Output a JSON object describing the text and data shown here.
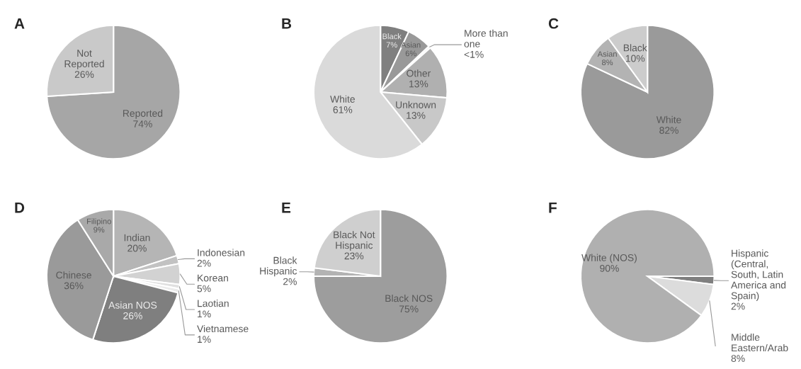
{
  "chart_data": [
    {
      "type": "pie",
      "title": "A",
      "categories": [
        "Reported",
        "Not\nReported"
      ],
      "values": [
        74,
        26
      ],
      "value_labels": [
        "74%",
        "26%"
      ],
      "colors": [
        "#a6a6a6",
        "#c9c9c9"
      ]
    },
    {
      "type": "pie",
      "title": "B",
      "categories": [
        "Black",
        "Asian",
        "More than\none",
        "Other",
        "Unknown",
        "White"
      ],
      "values": [
        7,
        6,
        0.5,
        13,
        13,
        61
      ],
      "value_labels": [
        "7%",
        "6%",
        "<1%",
        "13%",
        "13%",
        "61%"
      ],
      "colors": [
        "#7f7f7f",
        "#999999",
        "#f2f2f2",
        "#b0b0b0",
        "#c8c8c8",
        "#dadada"
      ]
    },
    {
      "type": "pie",
      "title": "C",
      "categories": [
        "White",
        "Asian",
        "Black"
      ],
      "values": [
        82,
        8,
        10
      ],
      "value_labels": [
        "82%",
        "8%",
        "10%"
      ],
      "colors": [
        "#9a9a9a",
        "#b3b3b3",
        "#cccccc"
      ]
    },
    {
      "type": "pie",
      "title": "D",
      "categories": [
        "Indian",
        "Indonesian",
        "Korean",
        "Laotian",
        "Vietnamese",
        "Asian NOS",
        "Chinese",
        "Filipino"
      ],
      "values": [
        20,
        2,
        5,
        1,
        1,
        26,
        36,
        9
      ],
      "value_labels": [
        "20%",
        "2%",
        "5%",
        "1%",
        "1%",
        "26%",
        "36%",
        "9%"
      ],
      "colors": [
        "#b5b5b5",
        "#c2c2c2",
        "#d2d2d2",
        "#e0e0e0",
        "#ebebeb",
        "#7f7f7f",
        "#9a9a9a",
        "#a9a9a9"
      ]
    },
    {
      "type": "pie",
      "title": "E",
      "categories": [
        "Black NOS",
        "Black\nHispanic",
        "Black Not\nHispanic"
      ],
      "values": [
        75,
        2,
        23
      ],
      "value_labels": [
        "75%",
        "2%",
        "23%"
      ],
      "colors": [
        "#9d9d9d",
        "#b3b3b3",
        "#cfcfcf"
      ]
    },
    {
      "type": "pie",
      "title": "F",
      "categories": [
        "Hispanic\n(Central,\nSouth, Latin\nAmerica and\nSpain)",
        "Middle\nEastern/Arab",
        "White (NOS)"
      ],
      "values": [
        2,
        8,
        90
      ],
      "value_labels": [
        "2%",
        "8%",
        "90%"
      ],
      "colors": [
        "#7f7f7f",
        "#dcdcdc",
        "#b0b0b0"
      ]
    }
  ]
}
